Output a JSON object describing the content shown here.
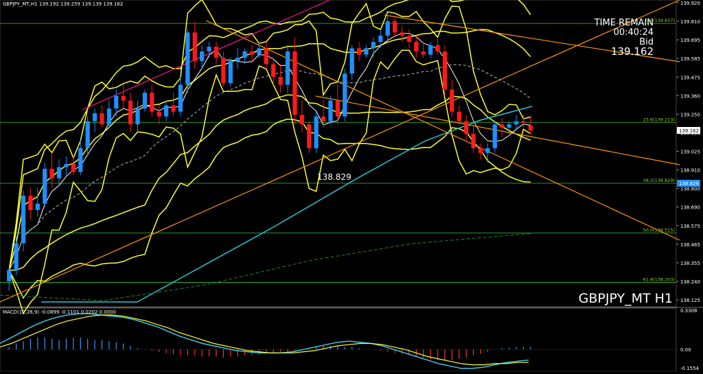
{
  "header": {
    "symbol_info": "GBPJPY_MT,H1  139.192 139.259 139.139 139.162"
  },
  "timer": {
    "title": "TIME REMAIN",
    "countdown": "00:40:24",
    "bid_label": "Bid",
    "bid_value": "139.162"
  },
  "watermark": "GBPJPY_MT H1",
  "swing_low_label": "138.829",
  "price_axis": {
    "ticks": [
      "139.920",
      "139.810",
      "139.695",
      "139.585",
      "139.475",
      "139.360",
      "139.250",
      "139.135",
      "139.025",
      "138.910",
      "138.800",
      "138.690",
      "138.575",
      "138.465",
      "138.355",
      "138.240",
      "138.125"
    ],
    "current_price": "139.162",
    "fib_price": "138.829"
  },
  "fibonacci": [
    {
      "label": "0.0(139.837)",
      "price": 139.837
    },
    {
      "label": "23.6(139.213)",
      "price": 139.213
    },
    {
      "label": "38.2(138.829)",
      "price": 138.829
    },
    {
      "label": "50.0(138.515)",
      "price": 138.515
    },
    {
      "label": "61.8(138.203)",
      "price": 138.203
    }
  ],
  "macd": {
    "label": "MACD(12,26,9) -0.0899 -0.1101 0.0202 0.0000",
    "ticks": [
      "0.3308",
      "0.00",
      "-0.1554"
    ]
  },
  "colors": {
    "background": "#000000",
    "bull": "#1e90ff",
    "bear": "#ff1a1a",
    "bands": "#ffff33",
    "ma_long": "#28c8d8",
    "trendline": "#ff9900",
    "fib": "#2ecc40",
    "channel": "#ff1493",
    "price_tag": "#ffffff",
    "fib_tag": "#1e90ff"
  },
  "chart_data": {
    "type": "candlestick",
    "symbol": "GBPJPY_MT",
    "timeframe": "H1",
    "ylim": [
      138.08,
      139.95
    ],
    "candles": [
      {
        "o": 138.21,
        "h": 138.3,
        "l": 138.15,
        "c": 138.28
      },
      {
        "o": 138.28,
        "h": 138.5,
        "l": 138.25,
        "c": 138.45
      },
      {
        "o": 138.45,
        "h": 138.78,
        "l": 138.4,
        "c": 138.75
      },
      {
        "o": 138.75,
        "h": 138.8,
        "l": 138.6,
        "c": 138.66
      },
      {
        "o": 138.66,
        "h": 138.8,
        "l": 138.62,
        "c": 138.7
      },
      {
        "o": 138.7,
        "h": 138.96,
        "l": 138.68,
        "c": 138.92
      },
      {
        "o": 138.92,
        "h": 139.02,
        "l": 138.8,
        "c": 138.86
      },
      {
        "o": 138.86,
        "h": 138.98,
        "l": 138.82,
        "c": 138.93
      },
      {
        "o": 138.93,
        "h": 139.0,
        "l": 138.88,
        "c": 138.95
      },
      {
        "o": 138.95,
        "h": 139.0,
        "l": 138.88,
        "c": 138.9
      },
      {
        "o": 138.9,
        "h": 139.1,
        "l": 138.88,
        "c": 139.05
      },
      {
        "o": 139.05,
        "h": 139.25,
        "l": 139.0,
        "c": 139.22
      },
      {
        "o": 139.22,
        "h": 139.3,
        "l": 139.15,
        "c": 139.27
      },
      {
        "o": 139.27,
        "h": 139.32,
        "l": 139.18,
        "c": 139.2
      },
      {
        "o": 139.2,
        "h": 139.35,
        "l": 139.18,
        "c": 139.3
      },
      {
        "o": 139.3,
        "h": 139.42,
        "l": 139.25,
        "c": 139.38
      },
      {
        "o": 139.38,
        "h": 139.45,
        "l": 139.3,
        "c": 139.35
      },
      {
        "o": 139.35,
        "h": 139.4,
        "l": 139.15,
        "c": 139.2
      },
      {
        "o": 139.2,
        "h": 139.35,
        "l": 139.15,
        "c": 139.3
      },
      {
        "o": 139.3,
        "h": 139.42,
        "l": 139.28,
        "c": 139.4
      },
      {
        "o": 139.4,
        "h": 139.45,
        "l": 139.25,
        "c": 139.28
      },
      {
        "o": 139.28,
        "h": 139.32,
        "l": 139.2,
        "c": 139.25
      },
      {
        "o": 139.25,
        "h": 139.35,
        "l": 139.22,
        "c": 139.32
      },
      {
        "o": 139.32,
        "h": 139.4,
        "l": 139.25,
        "c": 139.28
      },
      {
        "o": 139.28,
        "h": 139.5,
        "l": 139.25,
        "c": 139.45
      },
      {
        "o": 139.45,
        "h": 139.8,
        "l": 139.4,
        "c": 139.78
      },
      {
        "o": 139.78,
        "h": 139.85,
        "l": 139.55,
        "c": 139.6
      },
      {
        "o": 139.6,
        "h": 139.7,
        "l": 139.55,
        "c": 139.66
      },
      {
        "o": 139.66,
        "h": 139.72,
        "l": 139.62,
        "c": 139.69
      },
      {
        "o": 139.69,
        "h": 139.72,
        "l": 139.58,
        "c": 139.62
      },
      {
        "o": 139.62,
        "h": 139.66,
        "l": 139.44,
        "c": 139.46
      },
      {
        "o": 139.46,
        "h": 139.62,
        "l": 139.44,
        "c": 139.6
      },
      {
        "o": 139.6,
        "h": 139.68,
        "l": 139.55,
        "c": 139.62
      },
      {
        "o": 139.62,
        "h": 139.68,
        "l": 139.58,
        "c": 139.66
      },
      {
        "o": 139.66,
        "h": 139.7,
        "l": 139.6,
        "c": 139.64
      },
      {
        "o": 139.64,
        "h": 139.72,
        "l": 139.62,
        "c": 139.68
      },
      {
        "o": 139.68,
        "h": 139.72,
        "l": 139.55,
        "c": 139.58
      },
      {
        "o": 139.58,
        "h": 139.62,
        "l": 139.45,
        "c": 139.5
      },
      {
        "o": 139.5,
        "h": 139.58,
        "l": 139.4,
        "c": 139.45
      },
      {
        "o": 139.45,
        "h": 139.7,
        "l": 139.4,
        "c": 139.66
      },
      {
        "o": 139.66,
        "h": 139.75,
        "l": 139.2,
        "c": 139.26
      },
      {
        "o": 139.26,
        "h": 139.35,
        "l": 139.15,
        "c": 139.2
      },
      {
        "o": 139.2,
        "h": 139.22,
        "l": 139.02,
        "c": 139.05
      },
      {
        "o": 139.05,
        "h": 139.28,
        "l": 139.02,
        "c": 139.25
      },
      {
        "o": 139.25,
        "h": 139.35,
        "l": 139.18,
        "c": 139.22
      },
      {
        "o": 139.22,
        "h": 139.38,
        "l": 139.2,
        "c": 139.35
      },
      {
        "o": 139.35,
        "h": 139.45,
        "l": 139.2,
        "c": 139.25
      },
      {
        "o": 139.25,
        "h": 139.55,
        "l": 139.22,
        "c": 139.52
      },
      {
        "o": 139.52,
        "h": 139.7,
        "l": 139.48,
        "c": 139.68
      },
      {
        "o": 139.68,
        "h": 139.72,
        "l": 139.6,
        "c": 139.64
      },
      {
        "o": 139.64,
        "h": 139.7,
        "l": 139.62,
        "c": 139.68
      },
      {
        "o": 139.68,
        "h": 139.75,
        "l": 139.62,
        "c": 139.72
      },
      {
        "o": 139.72,
        "h": 139.8,
        "l": 139.68,
        "c": 139.76
      },
      {
        "o": 139.76,
        "h": 139.88,
        "l": 139.72,
        "c": 139.85
      },
      {
        "o": 139.85,
        "h": 139.87,
        "l": 139.75,
        "c": 139.78
      },
      {
        "o": 139.78,
        "h": 139.82,
        "l": 139.72,
        "c": 139.76
      },
      {
        "o": 139.76,
        "h": 139.8,
        "l": 139.68,
        "c": 139.72
      },
      {
        "o": 139.72,
        "h": 139.76,
        "l": 139.62,
        "c": 139.66
      },
      {
        "o": 139.66,
        "h": 139.72,
        "l": 139.62,
        "c": 139.64
      },
      {
        "o": 139.64,
        "h": 139.72,
        "l": 139.62,
        "c": 139.7
      },
      {
        "o": 139.7,
        "h": 139.74,
        "l": 139.64,
        "c": 139.66
      },
      {
        "o": 139.66,
        "h": 139.7,
        "l": 139.38,
        "c": 139.42
      },
      {
        "o": 139.42,
        "h": 139.48,
        "l": 139.25,
        "c": 139.28
      },
      {
        "o": 139.28,
        "h": 139.32,
        "l": 139.2,
        "c": 139.22
      },
      {
        "o": 139.22,
        "h": 139.26,
        "l": 139.1,
        "c": 139.14
      },
      {
        "o": 139.14,
        "h": 139.2,
        "l": 139.02,
        "c": 139.05
      },
      {
        "o": 139.05,
        "h": 139.08,
        "l": 138.98,
        "c": 139.02
      },
      {
        "o": 139.02,
        "h": 139.08,
        "l": 138.96,
        "c": 139.05
      },
      {
        "o": 139.05,
        "h": 139.22,
        "l": 139.02,
        "c": 139.2
      },
      {
        "o": 139.2,
        "h": 139.24,
        "l": 139.12,
        "c": 139.18
      },
      {
        "o": 139.18,
        "h": 139.22,
        "l": 139.14,
        "c": 139.2
      },
      {
        "o": 139.2,
        "h": 139.26,
        "l": 139.16,
        "c": 139.22
      },
      {
        "o": 139.22,
        "h": 139.26,
        "l": 139.18,
        "c": 139.21
      },
      {
        "o": 139.192,
        "h": 139.259,
        "l": 139.139,
        "c": 139.162
      }
    ],
    "macd_histogram": [
      0.02,
      0.05,
      0.07,
      0.09,
      0.1,
      0.1,
      0.09,
      0.08,
      0.09,
      0.1,
      0.1,
      0.09,
      0.08,
      0.08,
      0.07,
      0.06,
      0.05,
      0.03,
      0.01,
      0.0,
      -0.01,
      -0.02,
      -0.03,
      -0.04,
      -0.05,
      -0.05,
      -0.05,
      -0.06,
      -0.06,
      -0.06,
      -0.07,
      -0.06,
      -0.06,
      -0.05,
      -0.05,
      -0.04,
      -0.03,
      -0.03,
      -0.02,
      -0.02,
      -0.01,
      0.0,
      0.01,
      0.02,
      0.03,
      0.03,
      0.03,
      0.02,
      0.02,
      0.01,
      0.0,
      0.0,
      -0.01,
      -0.02,
      -0.03,
      -0.04,
      -0.05,
      -0.06,
      -0.07,
      -0.08,
      -0.09,
      -0.09,
      -0.09,
      -0.08,
      -0.07,
      -0.05,
      -0.04,
      -0.02,
      0.0,
      0.01,
      0.015,
      0.02,
      0.02,
      0.02
    ],
    "macd_line": [
      0.05,
      0.1,
      0.15,
      0.2,
      0.24,
      0.27,
      0.29,
      0.3,
      0.3,
      0.29,
      0.28,
      0.27,
      0.25,
      0.22,
      0.19,
      0.15,
      0.11,
      0.08,
      0.05,
      0.03,
      0.01,
      -0.01,
      -0.02,
      -0.03,
      -0.03,
      -0.03,
      -0.02,
      0.0,
      0.02,
      0.04,
      0.06,
      0.07,
      0.06,
      0.05,
      0.03,
      0.0,
      -0.03,
      -0.06,
      -0.09,
      -0.12,
      -0.14,
      -0.16,
      -0.16,
      -0.15,
      -0.13,
      -0.11,
      -0.1,
      -0.09
    ],
    "signal_line": [
      0.02,
      0.05,
      0.09,
      0.13,
      0.17,
      0.21,
      0.24,
      0.26,
      0.28,
      0.29,
      0.29,
      0.28,
      0.26,
      0.24,
      0.21,
      0.18,
      0.14,
      0.11,
      0.08,
      0.05,
      0.03,
      0.01,
      -0.01,
      -0.02,
      -0.03,
      -0.03,
      -0.03,
      -0.02,
      -0.01,
      0.01,
      0.03,
      0.04,
      0.05,
      0.05,
      0.04,
      0.02,
      0.0,
      -0.03,
      -0.06,
      -0.08,
      -0.1,
      -0.12,
      -0.13,
      -0.13,
      -0.12,
      -0.12,
      -0.11,
      -0.11
    ],
    "macd_ylim": [
      -0.1554,
      0.3308
    ]
  }
}
